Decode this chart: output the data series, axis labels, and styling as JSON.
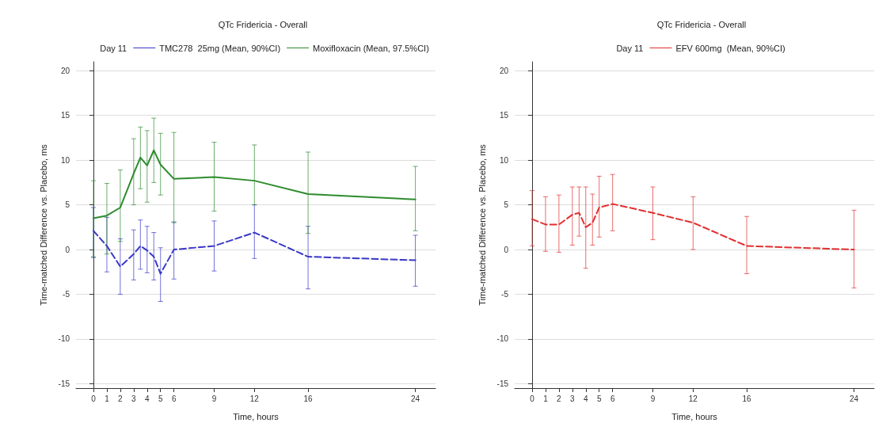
{
  "chart_data": [
    {
      "type": "line",
      "title": "QTc Fridericia - Overall",
      "legend_title": "Day 11",
      "xlabel": "Time, hours",
      "ylabel": "Time-matched Difference vs. Placebo, ms",
      "xlim": [
        -1.3,
        25.5
      ],
      "xticks": [
        0,
        1,
        2,
        3,
        4,
        5,
        6,
        9,
        12,
        16,
        24
      ],
      "ylim": [
        -15.5,
        21
      ],
      "yticks": [
        -15,
        -10,
        -5,
        0,
        5,
        10,
        15,
        20
      ],
      "grid": "y",
      "legend": "top",
      "marker": "none",
      "x": [
        0,
        1,
        2,
        3,
        3.5,
        4,
        4.5,
        5,
        6,
        9,
        12,
        16,
        24
      ],
      "series": [
        {
          "name": "TMC278  25mg (Mean, 90%CI)",
          "color": "#3838c8",
          "line_style": "dashed",
          "values": [
            2.1,
            0.4,
            -1.9,
            -0.5,
            0.4,
            -0.1,
            -0.8,
            -2.7,
            0,
            0.4,
            1.9,
            -0.8,
            -1.2
          ],
          "errors": [
            [
              -0.9,
              4.7
            ],
            [
              -2.5,
              3.6
            ],
            [
              -5,
              1.2
            ],
            [
              -3.4,
              2.2
            ],
            [
              -2.2,
              3.3
            ],
            [
              -2.6,
              2.6
            ],
            [
              -3.4,
              1.9
            ],
            [
              -5.8,
              0.2
            ],
            [
              -3.3,
              3.1
            ],
            [
              -2.4,
              3.2
            ],
            [
              -1,
              5
            ],
            [
              -4.4,
              2.6
            ],
            [
              -4.1,
              1.6
            ]
          ]
        },
        {
          "name": "Moxifloxacin (Mean, 97.5%CI)",
          "color": "#2e8b2e",
          "line_style": "solid",
          "values": [
            3.5,
            3.8,
            4.7,
            8.5,
            10.3,
            9.4,
            11.1,
            9.5,
            7.9,
            8.1,
            7.7,
            6.2,
            5.6
          ],
          "errors": [
            [
              -0.8,
              7.7
            ],
            [
              -0.5,
              7.4
            ],
            [
              0.9,
              8.9
            ],
            [
              5,
              12.4
            ],
            [
              6.8,
              13.7
            ],
            [
              5.3,
              13.3
            ],
            [
              7.5,
              14.7
            ],
            [
              6.1,
              13
            ],
            [
              3,
              13.1
            ],
            [
              4.3,
              12
            ],
            [
              5,
              11.7
            ],
            [
              1.8,
              10.9
            ],
            [
              2.1,
              9.3
            ]
          ]
        }
      ]
    },
    {
      "type": "line",
      "title": "QTc Fridericia - Overall",
      "legend_title": "Day 11",
      "xlabel": "Time, hours",
      "ylabel": "Time-matched Difference vs. Placebo, ms",
      "xlim": [
        -1.3,
        25.5
      ],
      "xticks": [
        0,
        1,
        2,
        3,
        4,
        5,
        6,
        9,
        12,
        16,
        24
      ],
      "ylim": [
        -15.5,
        21
      ],
      "yticks": [
        -15,
        -10,
        -5,
        0,
        5,
        10,
        15,
        20
      ],
      "grid": "y",
      "legend": "top",
      "marker": "none",
      "x": [
        0,
        1,
        2,
        3,
        3.5,
        4,
        4.5,
        5,
        6,
        9,
        12,
        16,
        24
      ],
      "series": [
        {
          "name": "EFV 600mg  (Mean, 90%CI)",
          "color": "#e03030",
          "line_style": "dashed",
          "values": [
            3.4,
            2.8,
            2.8,
            3.9,
            4.1,
            2.5,
            3.0,
            4.7,
            5.1,
            4.1,
            3.0,
            0.4,
            0
          ],
          "errors": [
            [
              0.4,
              6.6
            ],
            [
              -0.2,
              5.9
            ],
            [
              -0.3,
              6.1
            ],
            [
              0.5,
              7
            ],
            [
              1.5,
              7
            ],
            [
              -2.1,
              7
            ],
            [
              0.5,
              6.2
            ],
            [
              1.4,
              8.2
            ],
            [
              2.1,
              8.4
            ],
            [
              1.1,
              7
            ],
            [
              0,
              5.9
            ],
            [
              -2.7,
              3.7
            ],
            [
              -4.3,
              4.4
            ]
          ]
        }
      ]
    }
  ]
}
